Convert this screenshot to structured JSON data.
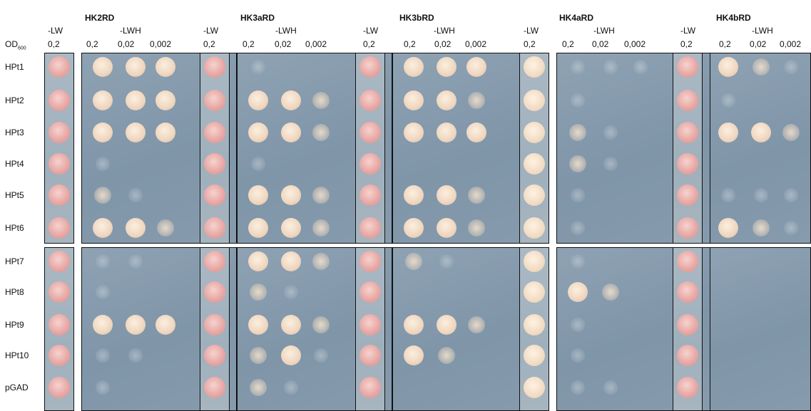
{
  "od_label": "OD",
  "od_sub": "600",
  "panels": [
    {
      "title": "HK2RD",
      "lw": "-LW",
      "lwh": "-LWH",
      "c1": "0,2",
      "c2": "0,2",
      "c3": "0,02",
      "c4": "0,002"
    },
    {
      "title": "HK3aRD",
      "lw": "-LW",
      "lwh": "-LWH",
      "c1": "0,2",
      "c2": "0,2",
      "c3": "0,02",
      "c4": "0,002"
    },
    {
      "title": "HK3bRD",
      "lw": "-LW",
      "lwh": "-LWH",
      "c1": "0,2",
      "c2": "0,2",
      "c3": "0,02",
      "c4": "0,002"
    },
    {
      "title": "HK4aRD",
      "lw": "-LW",
      "lwh": "-LWH",
      "c1": "0,2",
      "c2": "0,2",
      "c3": "0,02",
      "c4": "0,002"
    },
    {
      "title": "HK4bRD",
      "lw": "-LW",
      "lwh": "-LWH",
      "c1": "0,2",
      "c2": "0,2",
      "c3": "0,02",
      "c4": "0,002"
    }
  ],
  "rows": [
    "HPt1",
    "HPt2",
    "HPt3",
    "HPt4",
    "HPt5",
    "HPt6",
    "HPt7",
    "HPt8",
    "HPt9",
    "HPt10",
    "pGAD"
  ],
  "colors": {
    "pink_spot": "#e8a9a6",
    "cream_spot": "#f1dcc4",
    "faint_spot": "#a9b6c0",
    "plate_border": "#111111"
  },
  "growth": [
    [
      [
        3,
        3,
        3
      ],
      [
        1,
        0,
        0
      ],
      [
        3,
        3,
        3
      ],
      [
        1,
        1,
        1
      ],
      [
        3,
        2,
        1
      ]
    ],
    [
      [
        3,
        3,
        3
      ],
      [
        3,
        3,
        2
      ],
      [
        3,
        3,
        2
      ],
      [
        1,
        0,
        0
      ],
      [
        1,
        0,
        0
      ]
    ],
    [
      [
        3,
        3,
        3
      ],
      [
        3,
        3,
        2
      ],
      [
        3,
        3,
        3
      ],
      [
        2,
        1,
        0
      ],
      [
        3,
        3,
        2
      ]
    ],
    [
      [
        1,
        0,
        0
      ],
      [
        1,
        0,
        0
      ],
      [
        0,
        0,
        0
      ],
      [
        2,
        1,
        0
      ],
      [
        0,
        0,
        0
      ]
    ],
    [
      [
        2,
        1,
        0
      ],
      [
        3,
        3,
        2
      ],
      [
        3,
        3,
        2
      ],
      [
        1,
        0,
        0
      ],
      [
        1,
        1,
        1
      ]
    ],
    [
      [
        3,
        3,
        2
      ],
      [
        3,
        3,
        2
      ],
      [
        3,
        3,
        2
      ],
      [
        1,
        0,
        0
      ],
      [
        3,
        2,
        1
      ]
    ],
    [
      [
        1,
        1,
        0
      ],
      [
        3,
        3,
        2
      ],
      [
        2,
        1,
        0
      ],
      [
        1,
        0,
        0
      ],
      [
        0,
        0,
        0
      ]
    ],
    [
      [
        1,
        0,
        0
      ],
      [
        2,
        1,
        0
      ],
      [
        0,
        0,
        0
      ],
      [
        3,
        2,
        0
      ],
      [
        0,
        0,
        0
      ]
    ],
    [
      [
        3,
        3,
        3
      ],
      [
        3,
        3,
        2
      ],
      [
        3,
        3,
        2
      ],
      [
        1,
        0,
        0
      ],
      [
        0,
        0,
        0
      ]
    ],
    [
      [
        1,
        1,
        0
      ],
      [
        2,
        3,
        1
      ],
      [
        3,
        2,
        0
      ],
      [
        1,
        0,
        0
      ],
      [
        0,
        0,
        0
      ]
    ],
    [
      [
        1,
        0,
        0
      ],
      [
        2,
        1,
        0
      ],
      [
        0,
        0,
        0
      ],
      [
        1,
        1,
        0
      ],
      [
        0,
        0,
        0
      ]
    ]
  ]
}
